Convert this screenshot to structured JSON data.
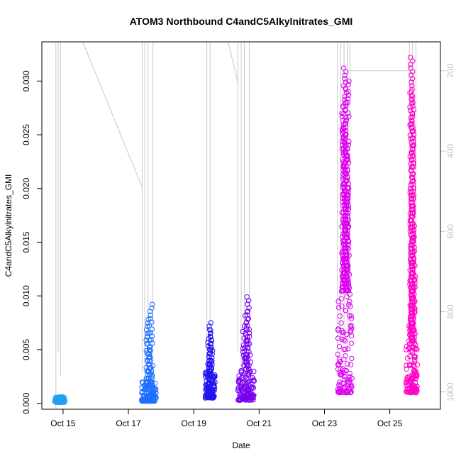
{
  "chart_data": {
    "type": "scatter",
    "title": "ATOM3 Northbound C4andC5Alkylnitrates_GMI",
    "xlabel": "Date",
    "ylabel": "C4andC5Alkylnitrates_GMI",
    "x_unit": "day of October",
    "xlim": [
      14.35,
      26.55
    ],
    "ylim": [
      -0.00055,
      0.03365
    ],
    "x_ticks": [
      {
        "value": 15,
        "label": "Oct 15"
      },
      {
        "value": 17,
        "label": "Oct 17"
      },
      {
        "value": 19,
        "label": "Oct 19"
      },
      {
        "value": 21,
        "label": "Oct 21"
      },
      {
        "value": 23,
        "label": "Oct 23"
      },
      {
        "value": 25,
        "label": "Oct 25"
      }
    ],
    "y_ticks": [
      {
        "value": 0.0,
        "label": "0.000"
      },
      {
        "value": 0.005,
        "label": "0.005"
      },
      {
        "value": 0.01,
        "label": "0.010"
      },
      {
        "value": 0.015,
        "label": "0.015"
      },
      {
        "value": 0.02,
        "label": "0.020"
      },
      {
        "value": 0.025,
        "label": "0.025"
      },
      {
        "value": 0.03,
        "label": "0.030"
      }
    ],
    "secondary_axis": {
      "side": "right",
      "reversed": true,
      "lim": [
        1043,
        128
      ],
      "ticks": [
        {
          "value": 200,
          "label": "200"
        },
        {
          "value": 400,
          "label": "400"
        },
        {
          "value": 600,
          "label": "600"
        },
        {
          "value": 800,
          "label": "800"
        },
        {
          "value": 1000,
          "label": "1000"
        }
      ],
      "color": "#bebebe"
    },
    "grid": false,
    "legend": "none",
    "colors": {
      "frame": "#000000",
      "secondary_line": "#c8c8c8",
      "secondary_axis": "#bebebe"
    },
    "series": [
      {
        "color": "#1ea0f0",
        "x_range": [
          14.75,
          15.05
        ],
        "y_min": 0.0001,
        "y_max": 0.0006,
        "y_spikes": []
      },
      {
        "color": "#1e6eff",
        "x_range": [
          17.4,
          17.85
        ],
        "y_min": 0.0002,
        "y_max": 0.002,
        "y_spikes": [
          0.0035,
          0.005,
          0.0065,
          0.0078,
          0.0092
        ]
      },
      {
        "color": "#2314f0",
        "x_range": [
          19.35,
          19.65
        ],
        "y_min": 0.0005,
        "y_max": 0.003,
        "y_spikes": [
          0.004,
          0.005,
          0.006,
          0.0068,
          0.0075
        ]
      },
      {
        "color": "#7800f0",
        "x_range": [
          20.35,
          20.85
        ],
        "y_min": 0.0003,
        "y_max": 0.0032,
        "y_spikes": [
          0.0045,
          0.0058,
          0.007,
          0.0085,
          0.0099
        ]
      },
      {
        "color": "#dc00f0",
        "x_range": [
          23.4,
          23.85
        ],
        "y_min": 0.001,
        "y_max": 0.0105,
        "y_spikes": [
          0.012,
          0.014,
          0.017,
          0.02,
          0.024,
          0.0255,
          0.028,
          0.03,
          0.0312
        ]
      },
      {
        "color": "#ff00c8",
        "x_range": [
          25.5,
          25.85
        ],
        "y_min": 0.001,
        "y_max": 0.0058,
        "y_spikes": [
          0.0075,
          0.01,
          0.0135,
          0.0165,
          0.02,
          0.026,
          0.029,
          0.0322
        ]
      }
    ],
    "secondary_series": [
      {
        "x": 14.78,
        "y": [
          1043,
          128,
          520,
          880,
          128
        ]
      },
      {
        "x": 14.85,
        "y": [
          128,
          900,
          128
        ]
      },
      {
        "x": 14.92,
        "y": [
          128,
          960,
          128
        ]
      },
      {
        "x": 15.6,
        "y": [
          128
        ]
      },
      {
        "x": 17.42,
        "y": [
          490,
          950,
          128
        ]
      },
      {
        "x": 17.5,
        "y": [
          128,
          930,
          128
        ]
      },
      {
        "x": 17.6,
        "y": [
          128,
          900,
          128
        ]
      },
      {
        "x": 17.75,
        "y": [
          128,
          970,
          128
        ]
      },
      {
        "x": 19.4,
        "y": [
          128,
          960,
          128
        ]
      },
      {
        "x": 19.5,
        "y": [
          128,
          930,
          128
        ]
      },
      {
        "x": 20.05,
        "y": [
          128
        ]
      },
      {
        "x": 20.35,
        "y": [
          230,
          900,
          128
        ]
      },
      {
        "x": 20.45,
        "y": [
          128,
          960,
          128
        ]
      },
      {
        "x": 20.55,
        "y": [
          128,
          980,
          128
        ]
      },
      {
        "x": 20.7,
        "y": [
          128,
          910,
          128
        ]
      },
      {
        "x": 23.4,
        "y": [
          128,
          920,
          128
        ]
      },
      {
        "x": 23.5,
        "y": [
          128,
          880,
          128
        ]
      },
      {
        "x": 23.6,
        "y": [
          128,
          850,
          128
        ]
      },
      {
        "x": 23.7,
        "y": [
          128,
          900,
          128
        ]
      },
      {
        "x": 23.78,
        "y": [
          128,
          820,
          200
        ]
      },
      {
        "x": 25.6,
        "y": [
          200,
          820,
          128
        ]
      },
      {
        "x": 25.7,
        "y": [
          128,
          860,
          128
        ]
      },
      {
        "x": 25.8,
        "y": [
          128,
          900,
          128
        ]
      }
    ]
  }
}
